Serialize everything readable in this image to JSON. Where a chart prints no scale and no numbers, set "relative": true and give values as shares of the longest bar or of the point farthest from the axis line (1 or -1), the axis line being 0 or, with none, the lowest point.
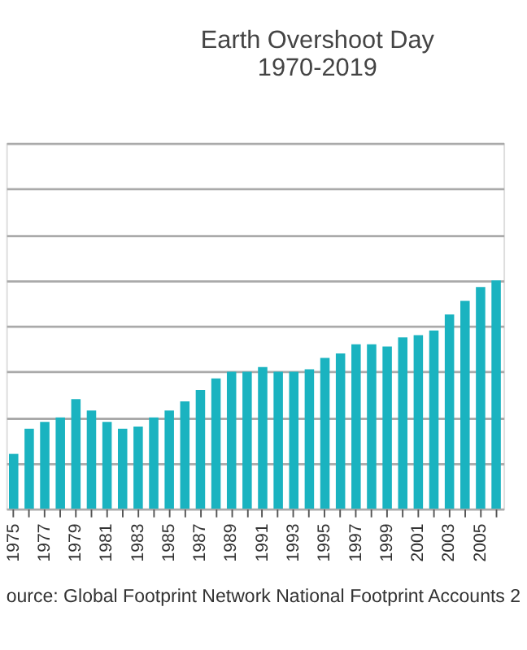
{
  "chart_data": {
    "type": "bar",
    "title": "Earth Overshoot Day\n1970-2019",
    "relative": true,
    "grid": "y",
    "color": "#1ab3c0",
    "categories": [
      "1975",
      null,
      "1977",
      null,
      "1979",
      null,
      "1981",
      null,
      "1983",
      null,
      "1985",
      null,
      "1987",
      null,
      "1989",
      null,
      "1991",
      null,
      "1993",
      null,
      "1995",
      null,
      "1997",
      null,
      "1999",
      null,
      "2001",
      null,
      "2003",
      null,
      "2005",
      null
    ],
    "values": [
      0.24,
      0.35,
      0.38,
      0.4,
      0.48,
      0.43,
      0.38,
      0.35,
      0.36,
      0.4,
      0.43,
      0.47,
      0.52,
      0.57,
      0.6,
      0.6,
      0.62,
      0.6,
      0.6,
      0.61,
      0.66,
      0.68,
      0.72,
      0.72,
      0.71,
      0.75,
      0.76,
      0.78,
      0.85,
      0.91,
      0.97,
      1.0
    ],
    "annotations": [
      "ource: Global Footprint Network National Footprint Accounts 2"
    ]
  }
}
